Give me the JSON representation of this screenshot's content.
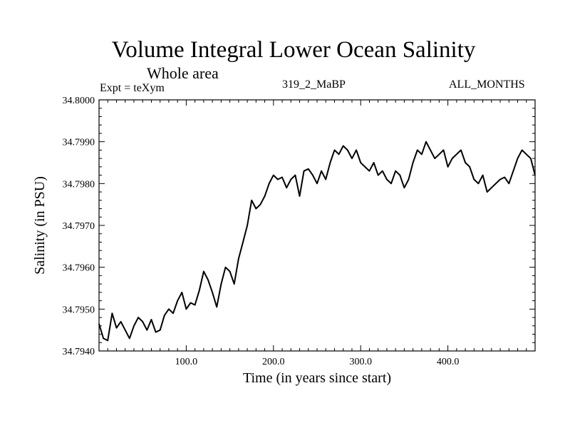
{
  "header": {
    "title": "Volume Integral Lower Ocean Salinity",
    "subtitle": "Whole area",
    "expt": "Expt = teXym",
    "run_id": "319_2_MaBP",
    "months": "ALL_MONTHS"
  },
  "chart_data": {
    "type": "line",
    "title": "Volume Integral Lower Ocean Salinity",
    "xlabel": "Time (in years since start)",
    "ylabel": "Salinity (in PSU)",
    "xlim": [
      0,
      500
    ],
    "ylim": [
      34.794,
      34.8
    ],
    "x_ticks": [
      100,
      200,
      300,
      400
    ],
    "x_tick_labels": [
      "100.0",
      "200.0",
      "300.0",
      "400.0"
    ],
    "y_ticks": [
      34.794,
      34.795,
      34.796,
      34.797,
      34.798,
      34.799,
      34.8
    ],
    "y_tick_labels": [
      "34.7940",
      "34.7950",
      "34.7960",
      "34.7970",
      "34.7980",
      "34.7990",
      "34.8000"
    ],
    "grid": false,
    "line_color": "#000000",
    "series": [
      {
        "x": [
          0,
          5,
          10,
          15,
          20,
          25,
          30,
          35,
          40,
          45,
          50,
          55,
          60,
          65,
          70,
          75,
          80,
          85,
          90,
          95,
          100,
          105,
          110,
          115,
          120,
          125,
          130,
          135,
          140,
          145,
          150,
          155,
          160,
          165,
          170,
          175,
          180,
          185,
          190,
          195,
          200,
          205,
          210,
          215,
          220,
          225,
          230,
          235,
          240,
          245,
          250,
          255,
          260,
          265,
          270,
          275,
          280,
          285,
          290,
          295,
          300,
          305,
          310,
          315,
          320,
          325,
          330,
          335,
          340,
          345,
          350,
          355,
          360,
          365,
          370,
          375,
          380,
          385,
          390,
          395,
          400,
          405,
          410,
          415,
          420,
          425,
          430,
          435,
          440,
          445,
          450,
          455,
          460,
          465,
          470,
          475,
          480,
          485,
          490,
          495,
          500
        ],
        "y": [
          34.79465,
          34.7943,
          34.79425,
          34.7949,
          34.79455,
          34.7947,
          34.7945,
          34.7943,
          34.7946,
          34.7948,
          34.7947,
          34.7945,
          34.79475,
          34.79445,
          34.7945,
          34.79485,
          34.795,
          34.7949,
          34.7952,
          34.7954,
          34.795,
          34.79515,
          34.7951,
          34.79545,
          34.7959,
          34.7957,
          34.7954,
          34.79505,
          34.7956,
          34.796,
          34.7959,
          34.7956,
          34.7962,
          34.7966,
          34.797,
          34.7976,
          34.7974,
          34.7975,
          34.7977,
          34.798,
          34.7982,
          34.7981,
          34.79815,
          34.7979,
          34.7981,
          34.7982,
          34.7977,
          34.7983,
          34.79835,
          34.7982,
          34.798,
          34.7983,
          34.7981,
          34.7985,
          34.7988,
          34.7987,
          34.7989,
          34.7988,
          34.7986,
          34.7988,
          34.7985,
          34.7984,
          34.7983,
          34.7985,
          34.7982,
          34.7983,
          34.7981,
          34.798,
          34.7983,
          34.7982,
          34.7979,
          34.7981,
          34.7985,
          34.7988,
          34.7987,
          34.799,
          34.7988,
          34.7986,
          34.7987,
          34.7988,
          34.7984,
          34.7986,
          34.7987,
          34.7988,
          34.7985,
          34.7984,
          34.7981,
          34.798,
          34.7982,
          34.7978,
          34.7979,
          34.798,
          34.7981,
          34.79815,
          34.798,
          34.7983,
          34.7986,
          34.7988,
          34.7987,
          34.7986,
          34.7982
        ]
      }
    ]
  }
}
